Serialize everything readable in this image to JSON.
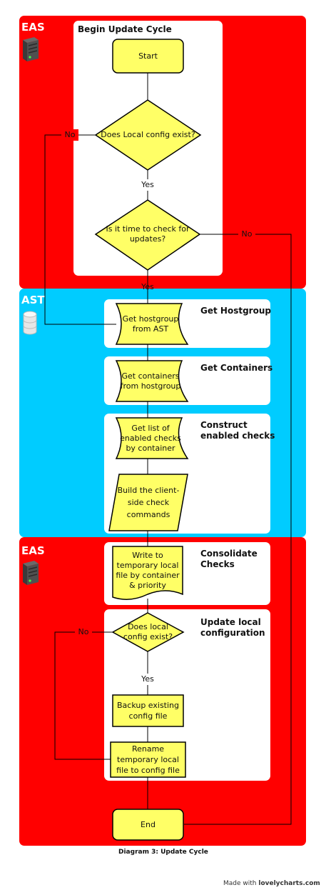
{
  "lanes": {
    "eas_top": "EAS",
    "ast": "AST",
    "eas_bottom": "EAS"
  },
  "groups": {
    "begin": "Begin Update Cycle",
    "hostgroup": "Get Hostgroup",
    "containers": "Get Containers",
    "construct_1": "Construct",
    "construct_2": "enabled checks",
    "consolidate_1": "Consolidate",
    "consolidate_2": "Checks",
    "update_1": "Update local",
    "update_2": "configuration"
  },
  "nodes": {
    "start": "Start",
    "config_exist_1": "Does Local config exist?",
    "time_check_1": "Is it time to check for",
    "time_check_2": "updates?",
    "get_hostgroup_1": "Get hostgroup",
    "get_hostgroup_2": "from AST",
    "get_containers_1": "Get containers",
    "get_containers_2": "from hostgroup",
    "list_checks_1": "Get list of",
    "list_checks_2": "enabled checks",
    "list_checks_3": "by container",
    "build_1": "Build the client-",
    "build_2": "side check",
    "build_3": "commands",
    "write_1": "Write to",
    "write_2": "temporary local",
    "write_3": "file by container",
    "write_4": "& priority",
    "local_exist_1": "Does local",
    "local_exist_2": "config exist?",
    "backup_1": "Backup existing",
    "backup_2": "config file",
    "rename_1": "Rename",
    "rename_2": "temporary local",
    "rename_3": "file to config file",
    "end": "End"
  },
  "edge_labels": {
    "no_1": "No",
    "yes_1": "Yes",
    "no_2": "No",
    "yes_2": "Yes",
    "no_3": "No",
    "yes_3": "Yes"
  },
  "caption": "Diagram 3: Update Cycle",
  "credit_prefix": "Made with ",
  "credit_site": "lovelycharts.com",
  "colors": {
    "eas_lane": "#ff0000",
    "ast_lane": "#00ccff",
    "node_fill": "#ffff66",
    "node_stroke": "#000000"
  },
  "icons": {
    "eas_top": "server-icon",
    "ast": "database-icon",
    "eas_bottom": "server-icon"
  }
}
